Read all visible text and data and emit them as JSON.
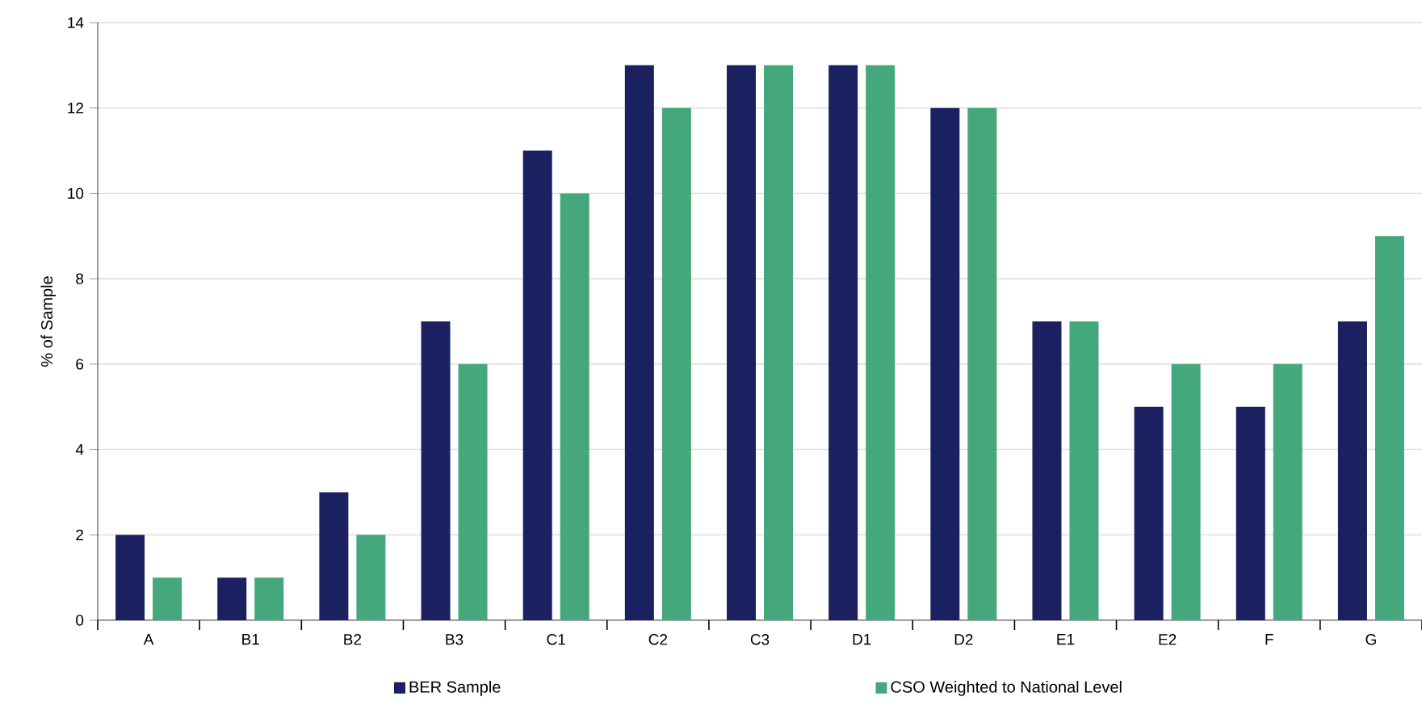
{
  "chart_data": {
    "type": "bar",
    "ylabel": "% of Sample",
    "categories": [
      "A",
      "B1",
      "B2",
      "B3",
      "C1",
      "C2",
      "C3",
      "D1",
      "D2",
      "E1",
      "E2",
      "F",
      "G"
    ],
    "series": [
      {
        "name": "BER Sample",
        "color": "#1b2160",
        "values": [
          2,
          1,
          3,
          7,
          11,
          13,
          13,
          13,
          12,
          7,
          5,
          5,
          7
        ]
      },
      {
        "name": "CSO Weighted to National Level",
        "color": "#45a87c",
        "values": [
          1,
          1,
          2,
          6,
          10,
          12,
          13,
          13,
          12,
          7,
          6,
          6,
          9
        ]
      }
    ],
    "ylim": [
      0,
      14
    ],
    "yticks": [
      0,
      2,
      4,
      6,
      8,
      10,
      12,
      14
    ],
    "grid": "y",
    "legend": "bottom"
  }
}
